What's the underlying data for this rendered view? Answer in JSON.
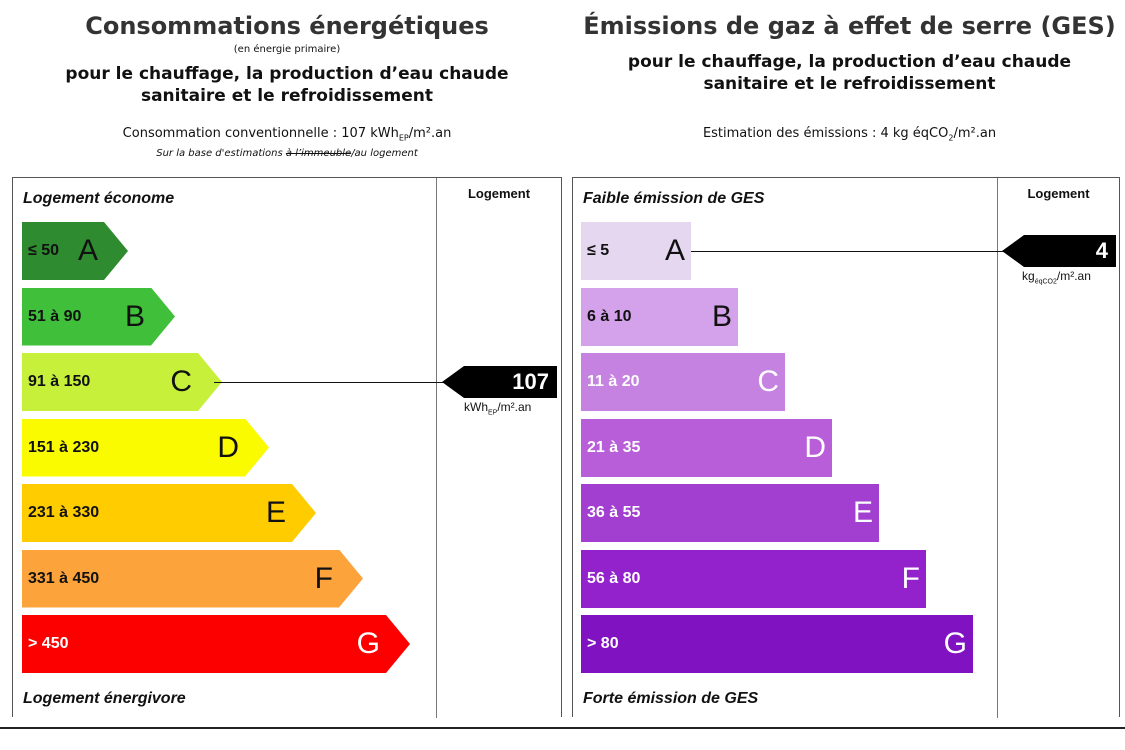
{
  "energy": {
    "title": "Consommations énergétiques",
    "note": "(en énergie primaire)",
    "subtitle_line1": "pour le chauffage, la production d’eau chaude",
    "subtitle_line2": "sanitaire et le refroidissement",
    "consumption_prefix": "Consommation conventionnelle : 107 kWh",
    "consumption_sub": "EP",
    "consumption_suffix": "/m².an",
    "basis_prefix": "Sur la base d'estimations ",
    "basis_struck": "à l’immeuble",
    "basis_suffix": "/au logement",
    "top_label": "Logement économe",
    "bottom_label": "Logement énergivore",
    "column_header": "Logement",
    "classes": [
      {
        "range": "≤ 50",
        "letter": "A",
        "color": "#2e8b30"
      },
      {
        "range": "51 à 90",
        "letter": "B",
        "color": "#3fbf3a"
      },
      {
        "range": "91 à 150",
        "letter": "C",
        "color": "#c6f03a"
      },
      {
        "range": "151 à 230",
        "letter": "D",
        "color": "#fbfb00"
      },
      {
        "range": "231 à 330",
        "letter": "E",
        "color": "#ffcc00"
      },
      {
        "range": "331 à 450",
        "letter": "F",
        "color": "#fca33c"
      },
      {
        "range": "> 450",
        "letter": "G",
        "color": "#fc0000"
      }
    ],
    "value": "107",
    "value_class": "C",
    "unit_prefix": "kWh",
    "unit_sub": "EP",
    "unit_suffix": "/m².an"
  },
  "ges": {
    "title": "Émissions de gaz à effet de serre (GES)",
    "subtitle_line1": "pour le chauffage, la production d’eau chaude",
    "subtitle_line2": "sanitaire et le refroidissement",
    "estimate_prefix": "Estimation des émissions : 4 kg éqCO",
    "estimate_sub": "2",
    "estimate_suffix": "/m².an",
    "top_label": "Faible émission de GES",
    "bottom_label": "Forte émission de GES",
    "column_header": "Logement",
    "classes": [
      {
        "range": "≤ 5",
        "letter": "A",
        "color": "#e4d7ef"
      },
      {
        "range": "6 à 10",
        "letter": "B",
        "color": "#d4a2ea"
      },
      {
        "range": "11 à 20",
        "letter": "C",
        "color": "#c682e0"
      },
      {
        "range": "21 à 35",
        "letter": "D",
        "color": "#b75ed8"
      },
      {
        "range": "36 à 55",
        "letter": "E",
        "color": "#a33fd0"
      },
      {
        "range": "56 à 80",
        "letter": "F",
        "color": "#9422cc"
      },
      {
        "range": "> 80",
        "letter": "G",
        "color": "#8012c2"
      }
    ],
    "value": "4",
    "value_class": "A",
    "unit_prefix": "kg",
    "unit_sub": "éqCO2",
    "unit_suffix": "/m².an"
  }
}
